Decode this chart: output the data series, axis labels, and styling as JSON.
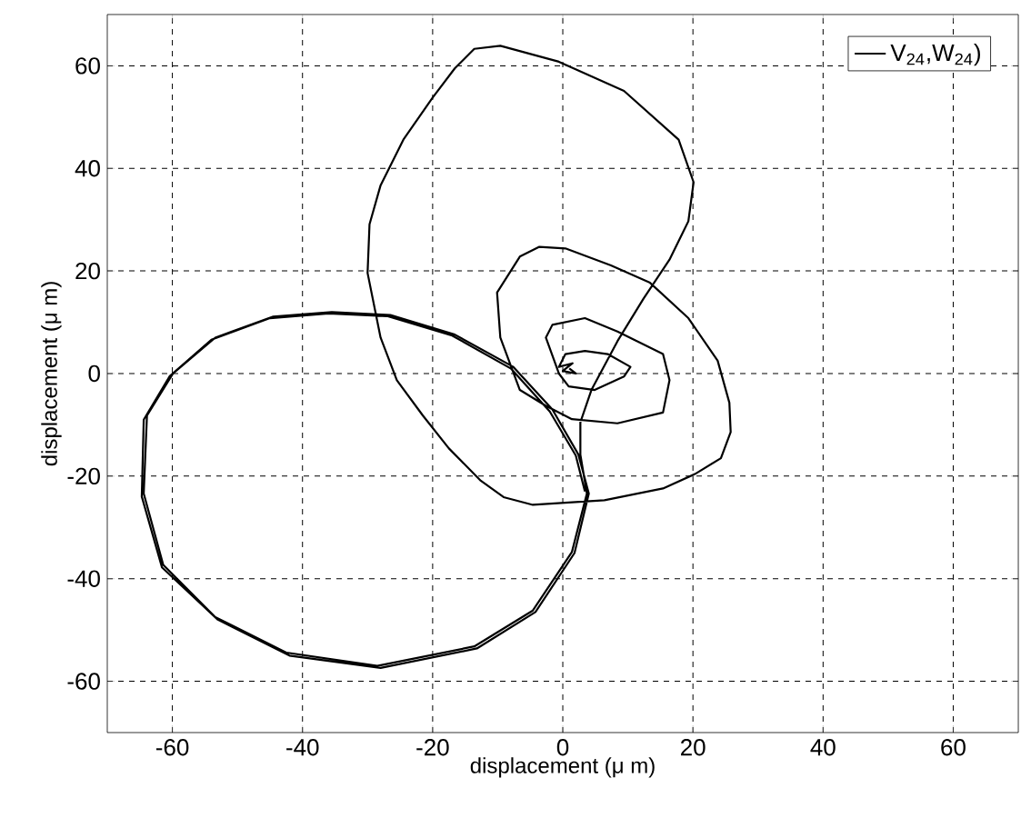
{
  "chart_data": {
    "type": "line",
    "xlabel": "displacement (μ m)",
    "ylabel": "displacement (μ m)",
    "xlim": [
      -70,
      70
    ],
    "ylim": [
      -70,
      70
    ],
    "xticks": [
      -60,
      -40,
      -20,
      0,
      20,
      40,
      60
    ],
    "yticks": [
      -60,
      -40,
      -20,
      0,
      20,
      40,
      60
    ],
    "grid": true,
    "legend": "top right",
    "line_style": "solid",
    "marker": "none",
    "series": [
      {
        "name": "V$_{24}$,W$_{24}$)",
        "color": "#000000",
        "x": [
          1,
          2,
          0,
          1.5,
          -0.6,
          0.4,
          3.4,
          6.9,
          10.4,
          9.4,
          4.9,
          0.9,
          -0.6,
          -2.6,
          -1.6,
          3.4,
          8.4,
          15.4,
          16.4,
          15.4,
          8.4,
          1.4,
          -2.6,
          -6.6,
          -9.6,
          -10.1,
          -6.6,
          -3.6,
          0.4,
          7.4,
          13.4,
          19.3,
          23.8,
          25.6,
          25.8,
          24.3,
          20.3,
          15.4,
          6.4,
          -4.6,
          -9.1,
          -12.6,
          -17.5,
          -21.5,
          -25.5,
          -28.0,
          -30.0,
          -29.7,
          -28.0,
          -24.5,
          -20.0,
          -16.6,
          -13.6,
          -9.6,
          -0.6,
          9.4,
          17.8,
          20.1,
          19.3,
          16.4,
          12.4,
          8.4,
          4.4,
          2.7,
          2.7,
          3.7,
          1.4,
          -4.6,
          -13.6,
          -28.5,
          -42.5,
          -53.4,
          -61.4,
          -64.4,
          -63.9,
          -59.9,
          -53.4,
          -44.5,
          -35.5,
          -26.5,
          -16.6,
          -7.6,
          -1.6,
          2.4,
          4.0,
          1.8,
          -4.2,
          -13.2,
          -28.0,
          -42.0,
          -53.0,
          -61.6,
          -64.7,
          -64.4,
          -60.4,
          -54.0,
          -45.0,
          -36.0,
          -27.0,
          -17.0,
          -8.0,
          -2.0,
          2.0,
          3.4
        ],
        "values": [
          1,
          0,
          0.5,
          2,
          1.3,
          3.8,
          4.4,
          3.8,
          1.3,
          -0.6,
          -3.2,
          -2.5,
          0,
          7.0,
          9.5,
          10.8,
          8.2,
          3.8,
          -1.3,
          -7.6,
          -9.7,
          -8.9,
          -6.3,
          -3.2,
          7.0,
          15.8,
          22.8,
          24.7,
          24.4,
          21.1,
          17.7,
          10.8,
          2.5,
          -5.7,
          -11.4,
          -16.5,
          -19.6,
          -22.4,
          -24.7,
          -25.6,
          -24.1,
          -20.9,
          -14.6,
          -8.2,
          -1.3,
          7.0,
          19.6,
          29.1,
          36.7,
          45.6,
          53.8,
          59.5,
          63.3,
          63.9,
          60.8,
          55.1,
          45.6,
          37.3,
          29.7,
          22.2,
          14.6,
          6.3,
          -3.2,
          -9.5,
          -15.8,
          -23.4,
          -34.8,
          -46.2,
          -53.2,
          -57.0,
          -54.4,
          -47.5,
          -37.3,
          -23.4,
          -8.2,
          0,
          7.0,
          11.1,
          12.0,
          11.4,
          7.6,
          1.3,
          -7.0,
          -15.8,
          -23.4,
          -35.0,
          -46.5,
          -53.6,
          -57.4,
          -55.0,
          -48.0,
          -37.8,
          -24.0,
          -9.0,
          -0.5,
          6.6,
          10.8,
          11.7,
          11.2,
          7.4,
          1.0,
          -7.4,
          -16.0,
          -23.0
        ]
      }
    ]
  }
}
